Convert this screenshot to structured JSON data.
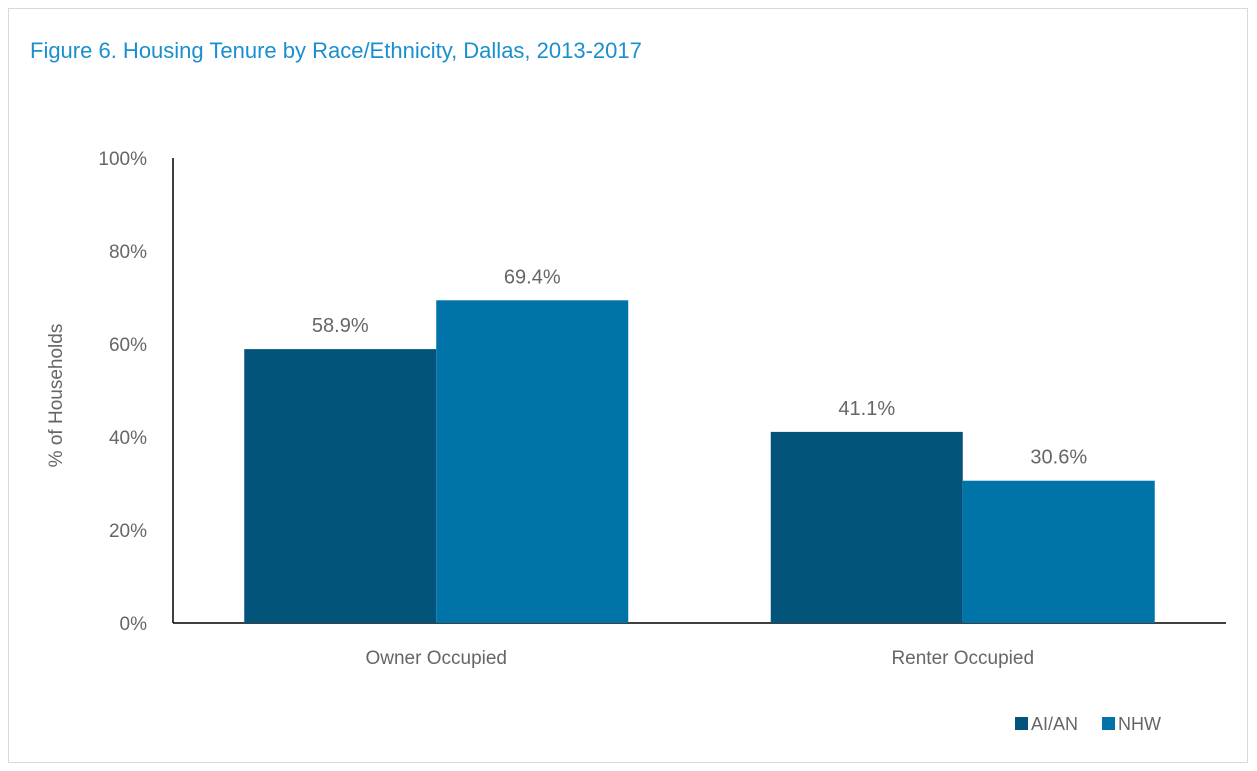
{
  "title": "Figure 6. Housing Tenure by Race/Ethnicity, Dallas, 2013-2017",
  "chart_data": {
    "type": "bar",
    "title": "Figure 6. Housing Tenure by Race/Ethnicity, Dallas, 2013-2017",
    "xlabel": "",
    "ylabel": "% of Households",
    "categories": [
      "Owner Occupied",
      "Renter Occupied"
    ],
    "series": [
      {
        "name": "AI/AN",
        "values": [
          58.9,
          41.1
        ],
        "labels": [
          "58.9%",
          "41.1%"
        ],
        "color": "#03547a"
      },
      {
        "name": "NHW",
        "values": [
          69.4,
          30.6
        ],
        "labels": [
          "69.4%",
          "30.6%"
        ],
        "color": "#0074a8"
      }
    ],
    "ylim": [
      0,
      100
    ],
    "yticks": [
      0,
      20,
      40,
      60,
      80,
      100
    ],
    "ytick_labels": [
      "0%",
      "20%",
      "40%",
      "60%",
      "80%",
      "100%"
    ],
    "grid": false,
    "legend_position": "bottom-right"
  }
}
